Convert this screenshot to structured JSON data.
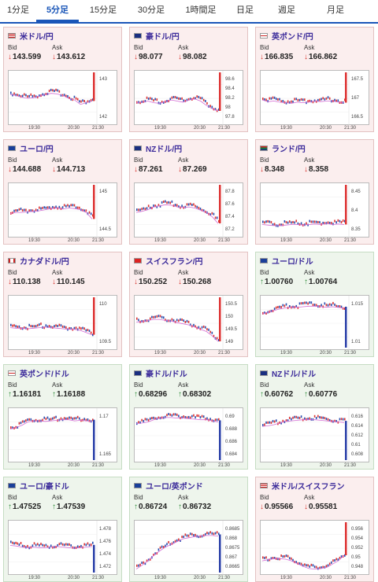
{
  "tabs": [
    {
      "label": "1分足",
      "active": false
    },
    {
      "label": "5分足",
      "active": true
    },
    {
      "label": "15分足",
      "active": false
    },
    {
      "label": "30分足",
      "active": false
    },
    {
      "label": "1時間足",
      "active": false
    },
    {
      "label": "日足",
      "active": false
    },
    {
      "label": "週足",
      "active": false
    },
    {
      "label": "月足",
      "active": false
    }
  ],
  "labels": {
    "bid": "Bid",
    "ask": "Ask"
  },
  "cards": [
    {
      "pair": "米ドル/円",
      "flag": "us",
      "bid": "143.599",
      "ask": "143.612",
      "dir": "down",
      "bg": "red",
      "yticks": [
        "143",
        "142"
      ],
      "xticks": [
        "19:30",
        "20:30",
        "21:30"
      ],
      "trend": [
        0.4,
        0.42,
        0.45,
        0.47,
        0.46,
        0.43,
        0.4,
        0.38,
        0.39,
        0.42,
        0.47,
        0.5,
        0.58,
        0.55,
        0.52
      ]
    },
    {
      "pair": "豪ドル/円",
      "flag": "au",
      "bid": "98.077",
      "ask": "98.082",
      "dir": "down",
      "bg": "red",
      "yticks": [
        "98.6",
        "98.4",
        "98.2",
        "98",
        "97.8"
      ],
      "xticks": [
        "19:30",
        "20:30",
        "21:30"
      ],
      "trend": [
        0.55,
        0.54,
        0.52,
        0.55,
        0.56,
        0.53,
        0.5,
        0.52,
        0.54,
        0.5,
        0.48,
        0.52,
        0.6,
        0.66,
        0.7
      ]
    },
    {
      "pair": "英ポンド/円",
      "flag": "gb",
      "bid": "166.835",
      "ask": "166.862",
      "dir": "down",
      "bg": "red",
      "yticks": [
        "167.5",
        "167",
        "166.5"
      ],
      "xticks": [
        "19:30",
        "20:30",
        "21:30"
      ],
      "trend": [
        0.5,
        0.53,
        0.52,
        0.54,
        0.55,
        0.56,
        0.54,
        0.55,
        0.54,
        0.52,
        0.53,
        0.52,
        0.52,
        0.54,
        0.55
      ]
    },
    {
      "pair": "ユーロ/円",
      "flag": "eu",
      "bid": "144.688",
      "ask": "144.713",
      "dir": "down",
      "bg": "red",
      "yticks": [
        "145",
        "144.5"
      ],
      "xticks": [
        "19:30",
        "20:30",
        "21:30"
      ],
      "trend": [
        0.52,
        0.5,
        0.5,
        0.49,
        0.48,
        0.47,
        0.45,
        0.43,
        0.42,
        0.44,
        0.42,
        0.43,
        0.45,
        0.5,
        0.62
      ]
    },
    {
      "pair": "NZドル/円",
      "flag": "nz",
      "bid": "87.261",
      "ask": "87.269",
      "dir": "down",
      "bg": "red",
      "yticks": [
        "87.8",
        "87.6",
        "87.4",
        "87.2"
      ],
      "xticks": [
        "19:30",
        "20:30",
        "21:30"
      ],
      "trend": [
        0.5,
        0.48,
        0.45,
        0.4,
        0.38,
        0.36,
        0.37,
        0.4,
        0.41,
        0.4,
        0.42,
        0.46,
        0.5,
        0.58,
        0.7
      ]
    },
    {
      "pair": "ランド/円",
      "flag": "za",
      "bid": "8.348",
      "ask": "8.358",
      "dir": "down",
      "bg": "red",
      "yticks": [
        "8.45",
        "8.4",
        "8.35"
      ],
      "xticks": [
        "19:30",
        "20:30",
        "21:30"
      ],
      "trend": [
        0.72,
        0.73,
        0.74,
        0.74,
        0.73,
        0.72,
        0.72,
        0.73,
        0.72,
        0.71,
        0.72,
        0.7,
        0.72,
        0.71,
        0.72
      ]
    },
    {
      "pair": "カナダドル/円",
      "flag": "ca",
      "bid": "110.138",
      "ask": "110.145",
      "dir": "down",
      "bg": "red",
      "yticks": [
        "110",
        "109.5"
      ],
      "xticks": [
        "19:30",
        "20:30",
        "21:30"
      ],
      "trend": [
        0.55,
        0.56,
        0.56,
        0.57,
        0.56,
        0.55,
        0.54,
        0.55,
        0.56,
        0.57,
        0.58,
        0.58,
        0.6,
        0.64,
        0.68
      ]
    },
    {
      "pair": "スイスフラン/円",
      "flag": "ch",
      "bid": "150.252",
      "ask": "150.268",
      "dir": "down",
      "bg": "red",
      "yticks": [
        "150.5",
        "150",
        "149.5",
        "149"
      ],
      "xticks": [
        "19:30",
        "20:30",
        "21:30"
      ],
      "trend": [
        0.45,
        0.44,
        0.42,
        0.4,
        0.4,
        0.42,
        0.43,
        0.46,
        0.48,
        0.5,
        0.54,
        0.58,
        0.62,
        0.7,
        0.8
      ]
    },
    {
      "pair": "ユーロ/ドル",
      "flag": "eu-us",
      "bid": "1.00760",
      "ask": "1.00764",
      "dir": "up",
      "bg": "green",
      "yticks": [
        "1.015",
        "1.01"
      ],
      "xticks": [
        "19:30",
        "20:30",
        "21:30"
      ],
      "trend": [
        0.3,
        0.27,
        0.24,
        0.21,
        0.19,
        0.18,
        0.18,
        0.17,
        0.16,
        0.16,
        0.17,
        0.18,
        0.17,
        0.18,
        0.2
      ]
    },
    {
      "pair": "英ポンド/ドル",
      "flag": "gb-us",
      "bid": "1.16181",
      "ask": "1.16188",
      "dir": "up",
      "bg": "green",
      "yticks": [
        "1.17",
        "1.165"
      ],
      "xticks": [
        "19:30",
        "20:30",
        "21:30"
      ],
      "trend": [
        0.35,
        0.32,
        0.28,
        0.22,
        0.2,
        0.2,
        0.21,
        0.2,
        0.19,
        0.18,
        0.18,
        0.2,
        0.19,
        0.2,
        0.21
      ]
    },
    {
      "pair": "豪ドル/ドル",
      "flag": "au-us",
      "bid": "0.68296",
      "ask": "0.68302",
      "dir": "up",
      "bg": "green",
      "yticks": [
        "0.69",
        "0.688",
        "0.686",
        "0.684"
      ],
      "xticks": [
        "19:30",
        "20:30",
        "21:30"
      ],
      "trend": [
        0.25,
        0.24,
        0.22,
        0.18,
        0.15,
        0.14,
        0.14,
        0.15,
        0.15,
        0.16,
        0.17,
        0.18,
        0.18,
        0.2,
        0.22
      ]
    },
    {
      "pair": "NZドル/ドル",
      "flag": "nz-us",
      "bid": "0.60762",
      "ask": "0.60776",
      "dir": "up",
      "bg": "green",
      "yticks": [
        "0.616",
        "0.614",
        "0.612",
        "0.61",
        "0.608"
      ],
      "xticks": [
        "19:30",
        "20:30",
        "21:30"
      ],
      "trend": [
        0.3,
        0.29,
        0.27,
        0.24,
        0.21,
        0.2,
        0.19,
        0.18,
        0.18,
        0.18,
        0.19,
        0.2,
        0.21,
        0.22,
        0.23
      ]
    },
    {
      "pair": "ユーロ/豪ドル",
      "flag": "eu-au",
      "bid": "1.47525",
      "ask": "1.47539",
      "dir": "up",
      "bg": "green",
      "yticks": [
        "1.478",
        "1.476",
        "1.474",
        "1.472"
      ],
      "xticks": [
        "19:30",
        "20:30",
        "21:30"
      ],
      "trend": [
        0.42,
        0.43,
        0.45,
        0.46,
        0.45,
        0.46,
        0.46,
        0.45,
        0.44,
        0.45,
        0.46,
        0.47,
        0.46,
        0.45,
        0.44
      ]
    },
    {
      "pair": "ユーロ/英ポンド",
      "flag": "eu-gb",
      "bid": "0.86724",
      "ask": "0.86732",
      "dir": "up",
      "bg": "green",
      "yticks": [
        "0.8685",
        "0.868",
        "0.8675",
        "0.867",
        "0.8665"
      ],
      "xticks": [
        "19:30",
        "20:30",
        "21:30"
      ],
      "trend": [
        0.85,
        0.78,
        0.7,
        0.6,
        0.52,
        0.45,
        0.4,
        0.35,
        0.3,
        0.28,
        0.26,
        0.25,
        0.24,
        0.24,
        0.25
      ]
    },
    {
      "pair": "米ドル/スイスフラン",
      "flag": "us-ch",
      "bid": "0.95566",
      "ask": "0.95581",
      "dir": "down",
      "bg": "red",
      "yticks": [
        "0.956",
        "0.954",
        "0.952",
        "0.95",
        "0.948"
      ],
      "xticks": [
        "19:30",
        "20:30",
        "21:30"
      ],
      "trend": [
        0.7,
        0.68,
        0.66,
        0.66,
        0.67,
        0.7,
        0.75,
        0.8,
        0.84,
        0.85,
        0.84,
        0.82,
        0.76,
        0.7,
        0.6
      ]
    }
  ]
}
